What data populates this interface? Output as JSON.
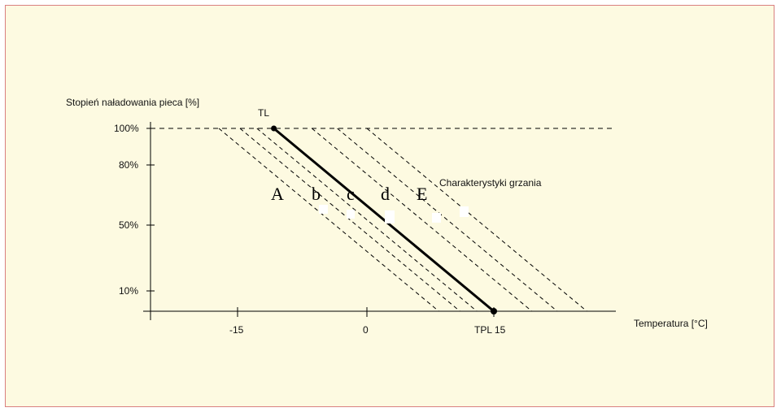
{
  "chart_data": {
    "type": "line",
    "title": "",
    "ylabel": "Stopień naładowania pieca  [%]",
    "xlabel": "Temperatura  [°C]",
    "y_ticks": [
      "100%",
      "80%",
      "50%",
      "10%"
    ],
    "x_ticks": [
      "-15",
      "0",
      "TPL 15"
    ],
    "top_point_label": "TL",
    "annotation": "Charakterystyki grzania",
    "curve_labels": [
      "A",
      "b",
      "c",
      "d",
      "E"
    ],
    "main_line": {
      "name": "d",
      "from": {
        "x": -11,
        "y": 100
      },
      "to": {
        "x": 15,
        "y": 0
      }
    },
    "dashed_lines": [
      {
        "from": {
          "x": -17.5,
          "y": 100
        },
        "to": {
          "x": 8.5,
          "y": 0
        }
      },
      {
        "from": {
          "x": -15,
          "y": 100
        },
        "to": {
          "x": 11,
          "y": 0
        }
      },
      {
        "from": {
          "x": -13,
          "y": 100
        },
        "to": {
          "x": 13,
          "y": 0
        }
      },
      {
        "from": {
          "x": -6.5,
          "y": 100
        },
        "to": {
          "x": 19.5,
          "y": 0
        }
      },
      {
        "from": {
          "x": -3.5,
          "y": 100
        },
        "to": {
          "x": 22.5,
          "y": 0
        }
      },
      {
        "from": {
          "x": 0,
          "y": 100
        },
        "to": {
          "x": 26,
          "y": 0
        }
      }
    ],
    "reference_line": {
      "y": 100,
      "style": "dashed"
    },
    "colors": {
      "background": "#fdfae1",
      "border": "#d98080",
      "line": "#000000"
    }
  }
}
